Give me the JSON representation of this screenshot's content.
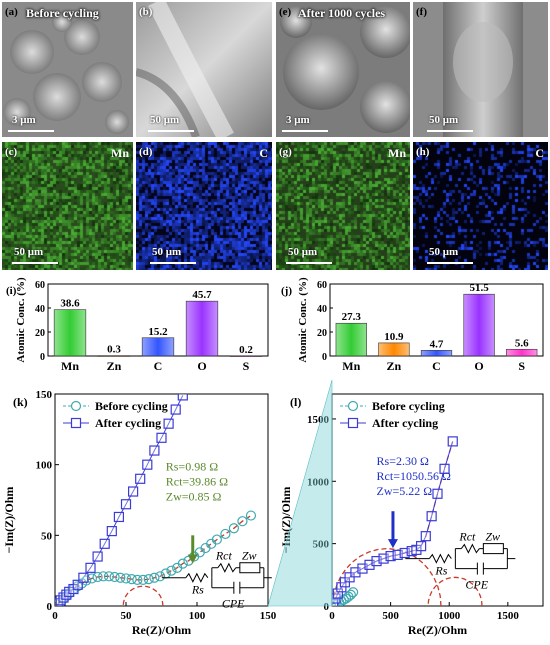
{
  "panels_top": {
    "a": {
      "label": "(a)",
      "title": "Before cycling",
      "scale": "3 μm"
    },
    "b": {
      "label": "(b)",
      "scale": "50 μm"
    },
    "e": {
      "label": "(e)",
      "title": "After 1000 cycles",
      "scale": "3 μm"
    },
    "f": {
      "label": "(f)",
      "scale": "50 μm"
    },
    "c": {
      "label": "(c)",
      "element": "Mn",
      "scale": "50 μm"
    },
    "d": {
      "label": "(d)",
      "element": "C",
      "scale": "50 μm"
    },
    "g": {
      "label": "(g)",
      "element": "Mn",
      "scale": "50 μm"
    },
    "h": {
      "label": "(h)",
      "element": "C",
      "scale": "50 μm"
    }
  },
  "colors": {
    "mn": "#3c8a2a",
    "c_map": "#1d39c8",
    "scatter": "#3fa9b0",
    "square": "#3b3bd6",
    "fit": "#c83c2a",
    "rs_before": "#5a8a2c",
    "rs_after": "#1f2fc8"
  },
  "chart_data": [
    {
      "type": "bar",
      "panel": "(i)",
      "ylabel": "Atomic Conc. (%)",
      "categories": [
        "Mn",
        "Zn",
        "C",
        "O",
        "S"
      ],
      "values": [
        38.6,
        0.3,
        15.2,
        45.7,
        0.2
      ],
      "value_labels": [
        "38.6",
        "0.3",
        "15.2",
        "45.7",
        "0.2"
      ],
      "bar_colors": [
        "#33cc33",
        "#ff8800",
        "#3355ff",
        "#9933ff",
        "#ff33cc"
      ],
      "ylim": [
        0,
        60
      ],
      "yticks": [
        "0",
        "20",
        "40",
        "60"
      ]
    },
    {
      "type": "bar",
      "panel": "(j)",
      "ylabel": "Atomic Conc. (%)",
      "categories": [
        "Mn",
        "Zn",
        "C",
        "O",
        "S"
      ],
      "values": [
        27.3,
        10.9,
        4.7,
        51.5,
        5.6
      ],
      "value_labels": [
        "27.3",
        "10.9",
        "4.7",
        "51.5",
        "5.6"
      ],
      "bar_colors": [
        "#33cc33",
        "#ff8800",
        "#3355ff",
        "#9933ff",
        "#ff33cc"
      ],
      "ylim": [
        0,
        60
      ],
      "yticks": [
        "0",
        "20",
        "40",
        "60"
      ]
    },
    {
      "type": "scatter",
      "panel": "(k)",
      "xlabel": "Re(Z)/Ohm",
      "ylabel": "−Im(Z)/Ohm",
      "xlim": [
        0,
        150
      ],
      "ylim": [
        0,
        150
      ],
      "xticks": [
        "0",
        "50",
        "100",
        "150"
      ],
      "yticks": [
        "0",
        "50",
        "100",
        "150"
      ],
      "legend": [
        "Before cycling",
        "After cycling"
      ],
      "annotation": [
        "Rs=0.98 Ω",
        "Rct=39.86 Ω",
        "Zw=0.85 Ω"
      ],
      "circuit": {
        "rs": "Rs",
        "rct": "Rct",
        "zw": "Zw",
        "cpe": "CPE"
      },
      "series": [
        {
          "name": "Before cycling",
          "marker": "circle",
          "x": [
            2,
            4,
            6,
            8,
            10,
            13,
            16,
            19,
            22,
            26,
            30,
            34,
            38,
            42,
            46,
            50,
            54,
            58,
            62,
            66,
            70,
            74,
            78,
            82,
            86,
            90,
            94,
            98,
            102,
            106,
            110,
            114,
            120,
            126,
            132,
            138
          ],
          "y": [
            1,
            3,
            5,
            7,
            9,
            12,
            14,
            16,
            18,
            19.5,
            20.5,
            21,
            21,
            20.5,
            20,
            19.5,
            19,
            18.5,
            18.5,
            19,
            20,
            21,
            23,
            25,
            27,
            30,
            32,
            35,
            38,
            41,
            44,
            47,
            51,
            55,
            60,
            64
          ]
        },
        {
          "name": "After cycling",
          "marker": "square",
          "x": [
            2,
            4,
            6,
            8,
            10,
            13,
            16,
            20,
            25,
            30,
            35,
            40,
            45,
            50,
            55,
            60,
            65,
            70,
            75,
            80,
            85,
            90
          ],
          "y": [
            2,
            4,
            6,
            8,
            10,
            12,
            15,
            20,
            27,
            35,
            44,
            53,
            63,
            72,
            81,
            90,
            100,
            110,
            119,
            129,
            139,
            149
          ]
        }
      ]
    },
    {
      "type": "scatter",
      "panel": "(l)",
      "xlabel": "Re(Z)/Ohm",
      "ylabel": "−Im(Z)/Ohm",
      "xlim": [
        0,
        1800
      ],
      "ylim": [
        0,
        1700
      ],
      "xticks": [
        "0",
        "500",
        "1000",
        "1500"
      ],
      "yticks": [
        "0",
        "500",
        "1000",
        "1500"
      ],
      "legend": [
        "Before cycling",
        "After cycling"
      ],
      "annotation": [
        "Rs=2.30 Ω",
        "Rct=1050.56 Ω",
        "Zw=5.22 Ω"
      ],
      "circuit": {
        "rs": "Rs",
        "rct": "Rct",
        "zw": "Zw",
        "cpe": "CPE"
      },
      "series": [
        {
          "name": "Before cycling",
          "marker": "circle",
          "x": [
            20,
            40,
            60,
            80,
            100,
            120,
            140,
            160,
            180
          ],
          "y": [
            10,
            20,
            30,
            40,
            50,
            60,
            75,
            90,
            110
          ]
        },
        {
          "name": "After cycling",
          "marker": "square",
          "x": [
            10,
            30,
            50,
            80,
            110,
            150,
            200,
            260,
            320,
            380,
            440,
            500,
            560,
            620,
            680,
            720,
            760,
            800,
            850,
            900,
            960,
            1030
          ],
          "y": [
            20,
            60,
            100,
            150,
            190,
            230,
            270,
            300,
            330,
            360,
            380,
            400,
            410,
            425,
            440,
            450,
            480,
            560,
            720,
            900,
            1100,
            1320
          ]
        }
      ]
    }
  ]
}
